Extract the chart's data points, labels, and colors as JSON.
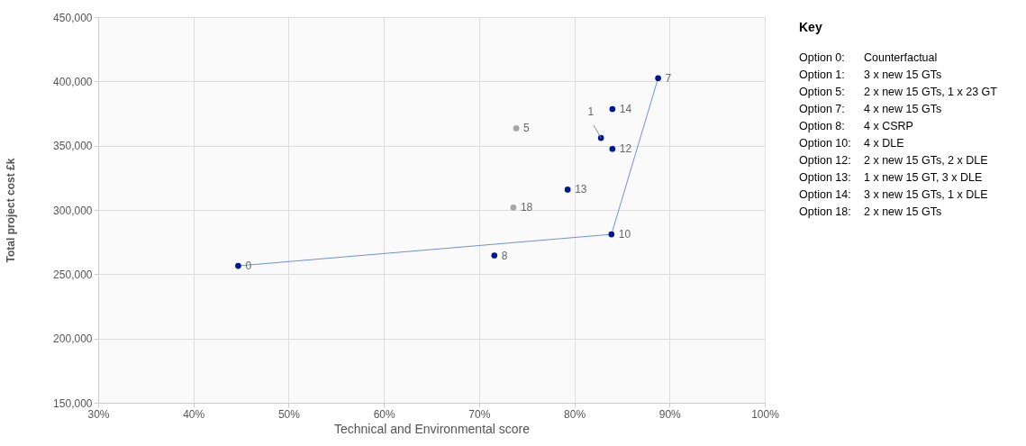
{
  "chart_data": {
    "type": "scatter",
    "xlabel": "Technical and Environmental score",
    "ylabel": "Total project cost £k",
    "xlim": [
      30,
      100
    ],
    "ylim": [
      150000,
      450000
    ],
    "xticks": [
      {
        "value": 30,
        "label": "30%"
      },
      {
        "value": 40,
        "label": "40%"
      },
      {
        "value": 50,
        "label": "50%"
      },
      {
        "value": 60,
        "label": "60%"
      },
      {
        "value": 70,
        "label": "70%"
      },
      {
        "value": 80,
        "label": "80%"
      },
      {
        "value": 90,
        "label": "90%"
      },
      {
        "value": 100,
        "label": "100%"
      }
    ],
    "yticks": [
      {
        "value": 150000,
        "label": "150,000"
      },
      {
        "value": 200000,
        "label": "200,000"
      },
      {
        "value": 250000,
        "label": "250,000"
      },
      {
        "value": 300000,
        "label": "300,000"
      },
      {
        "value": 350000,
        "label": "350,000"
      },
      {
        "value": 400000,
        "label": "400,000"
      },
      {
        "value": 450000,
        "label": "450,000"
      }
    ],
    "grid": true,
    "marker": "circle",
    "series": [
      {
        "type": "line",
        "color": "#6f8fdf",
        "x": [
          44.7,
          83.9,
          88.8
        ],
        "values": [
          256500,
          281000,
          402500
        ],
        "marker": "none",
        "line_style": "solid"
      },
      {
        "color": "#00188f",
        "x": [
          44.7,
          82.8,
          88.8,
          71.6,
          83.9,
          84.0,
          79.3,
          84.0
        ],
        "values": [
          256500,
          356000,
          402500,
          264600,
          281000,
          347500,
          315800,
          378500
        ]
      },
      {
        "color": "#a6a6a6",
        "x": [
          73.9,
          73.6
        ],
        "values": [
          363500,
          301900
        ]
      }
    ],
    "annotations": [
      {
        "text": "0",
        "x": 44.7,
        "y": 256500
      },
      {
        "text": "1",
        "x": 82.8,
        "y": 356000
      },
      {
        "text": "5",
        "x": 73.9,
        "y": 363500
      },
      {
        "text": "7",
        "x": 88.8,
        "y": 402500
      },
      {
        "text": "8",
        "x": 71.6,
        "y": 264600
      },
      {
        "text": "10",
        "x": 83.9,
        "y": 281000
      },
      {
        "text": "12",
        "x": 84.0,
        "y": 347500
      },
      {
        "text": "13",
        "x": 79.3,
        "y": 315800
      },
      {
        "text": "14",
        "x": 84.0,
        "y": 378500
      },
      {
        "text": "18",
        "x": 73.6,
        "y": 301900
      },
      "Key",
      "Option 0: Counterfactual",
      "Option 1: 3 x new 15 GTs",
      "Option 5: 2 x new 15 GTs, 1 x 23 GT",
      "Option 7: 4 x new 15 GTs",
      "Option 8: 4 x CSRP",
      "Option 10: 4 x DLE",
      "Option 12: 2 x new 15 GTs, 2 x DLE",
      "Option 13: 1 x new 15 GT, 3 x DLE",
      "Option 14: 3 x new 15 GTs, 1 x DLE",
      "Option 18: 2 x new 15 GTs"
    ]
  }
}
